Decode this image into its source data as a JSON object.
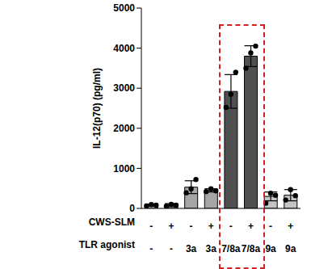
{
  "chart_data": {
    "type": "bar",
    "y_label": "IL-12(p70) (pg/ml)",
    "category_row_labels": [
      "CWS-SLM",
      "TLR agonist"
    ],
    "categories": [
      [
        "-",
        "-"
      ],
      [
        "+",
        "-"
      ],
      [
        "-",
        "3a"
      ],
      [
        "+",
        "3a"
      ],
      [
        "-",
        "7/8a"
      ],
      [
        "+",
        "7/8a"
      ],
      [
        "-",
        "9a"
      ],
      [
        "+",
        "9a"
      ]
    ],
    "values": [
      80,
      80,
      530,
      450,
      2920,
      3800,
      300,
      330
    ],
    "errors": [
      30,
      40,
      160,
      40,
      420,
      260,
      110,
      140
    ],
    "points": [
      [
        60,
        95,
        80
      ],
      [
        55,
        100,
        80
      ],
      [
        390,
        490,
        720
      ],
      [
        420,
        490,
        440
      ],
      [
        2520,
        2850,
        3400
      ],
      [
        3500,
        3880,
        4050
      ],
      [
        130,
        380,
        330
      ],
      [
        210,
        470,
        320
      ]
    ],
    "colors": [
      "#cccccc",
      "#cccccc",
      "#a6a6a6",
      "#a6a6a6",
      "#505050",
      "#505050",
      "#c4c4c4",
      "#c4c4c4"
    ],
    "ylim": [
      0,
      5000
    ],
    "yticks": [
      0,
      1000,
      2000,
      3000,
      4000,
      5000
    ],
    "grid": false
  }
}
